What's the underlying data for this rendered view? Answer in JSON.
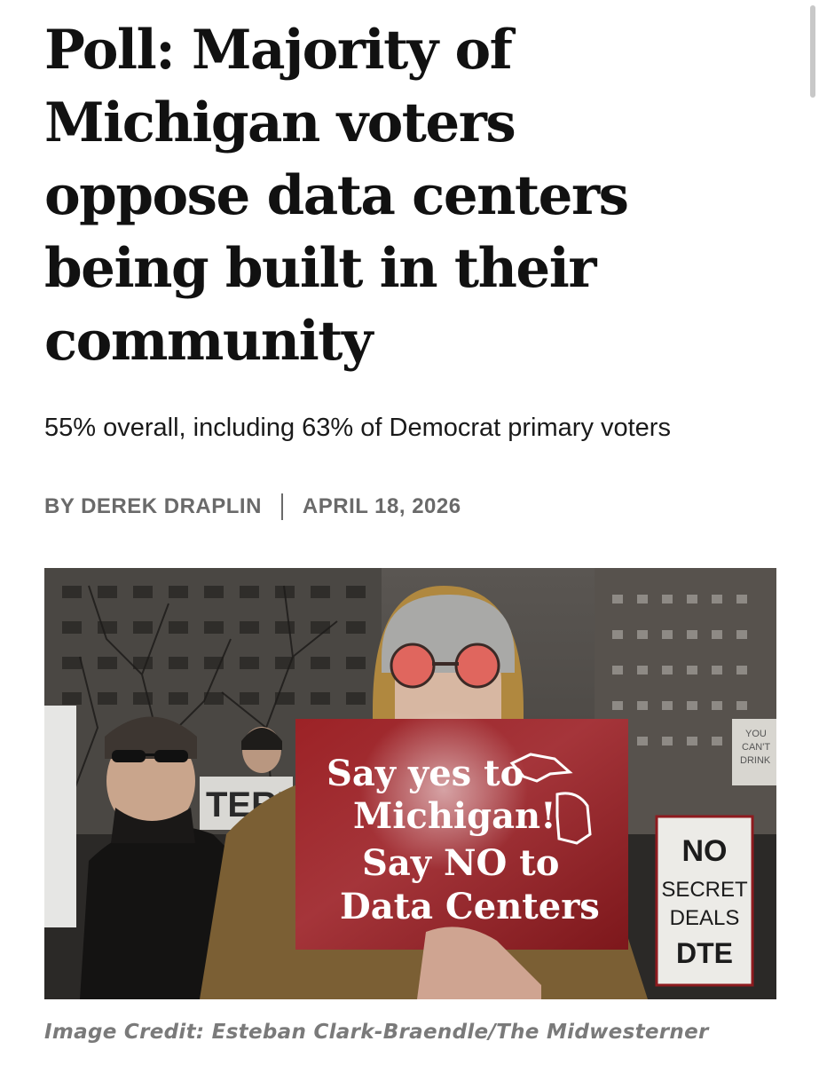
{
  "article": {
    "headline": "Poll: Majority of Michigan voters oppose data centers being built in their community",
    "subtitle": "55% overall, including 63% of Democrat primary voters",
    "byline_author": "BY DEREK DRAPLIN",
    "byline_date": "APRIL 18, 2026"
  },
  "photo": {
    "main_sign_lines": [
      "Say yes to",
      "Michigan!",
      "Say NO to",
      "Data Centers"
    ],
    "right_sign_lines": [
      "NO",
      "SECRET",
      "DEALS",
      "DTE"
    ],
    "far_right_sign_lines": [
      "YOU",
      "CAN'T",
      "DRINK"
    ],
    "bg_banner_text": "TERR",
    "colors": {
      "sign_red": "#8e1b1f",
      "hood_tan": "#b0883f",
      "beanie_gray": "#a9a9a7",
      "glasses_red": "#e0665e"
    }
  },
  "credit": {
    "text": "Image Credit: Esteban Clark-Braendle/The Midwesterner"
  }
}
